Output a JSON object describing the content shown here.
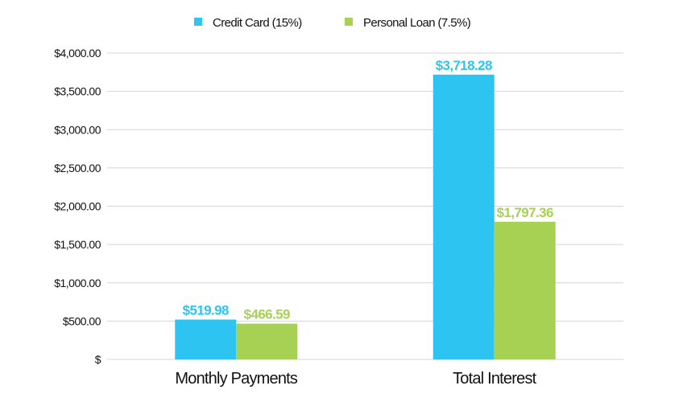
{
  "chart_data": {
    "type": "bar",
    "categories": [
      "Monthly Payments",
      "Total Interest"
    ],
    "series": [
      {
        "name": "Credit Card (15%)",
        "values": [
          519.98,
          3718.28
        ],
        "labels": [
          "$519.98",
          "$3,718.28"
        ],
        "color": "#2ec4f1"
      },
      {
        "name": "Personal Loan (7.5%)",
        "values": [
          466.59,
          1797.36
        ],
        "labels": [
          "$466.59",
          "$1,797.36"
        ],
        "color": "#a7d152"
      }
    ],
    "yticks": [
      0,
      500,
      1000,
      1500,
      2000,
      2500,
      3000,
      3500,
      4000
    ],
    "ytick_labels": [
      "$",
      "$500.00",
      "$1,000.00",
      "$1,500.00",
      "$2,000.00",
      "$2,500.00",
      "$3,000.00",
      "$3,500.00",
      "$4,000.00"
    ],
    "ylim": [
      0,
      4000
    ],
    "grid": true,
    "legend_position": "top-center",
    "title": "",
    "xlabel": "",
    "ylabel": ""
  }
}
